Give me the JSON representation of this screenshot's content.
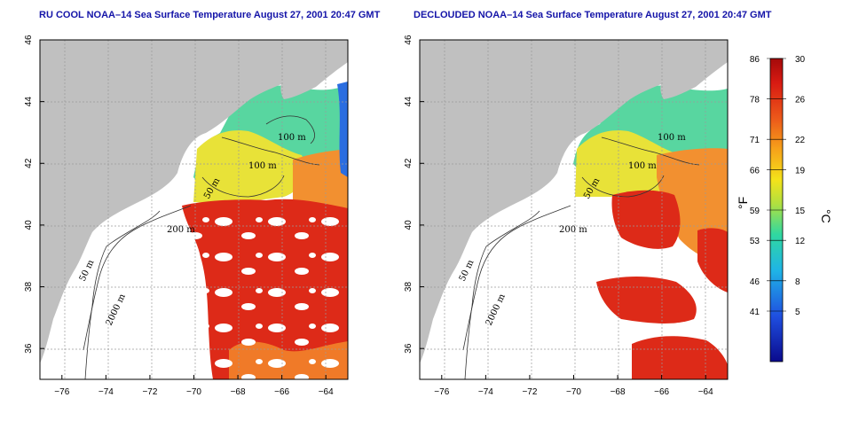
{
  "panels": [
    {
      "title": "RU COOL NOAA–14 Sea Surface Temperature August 27, 2001 20:47 GMT",
      "contour_labels": [
        "100 m",
        "100 m",
        "50 m",
        "200 m",
        "50 m",
        "2000 m"
      ]
    },
    {
      "title": "DECLOUDED NOAA–14 Sea Surface Temperature August 27, 2001 20:47 GMT",
      "contour_labels": [
        "100 m",
        "100 m",
        "50 m",
        "200 m",
        "50 m",
        "2000 m"
      ]
    }
  ],
  "axes": {
    "longitude_ticks": [
      "−76",
      "−74",
      "−72",
      "−70",
      "−68",
      "−66",
      "−64"
    ],
    "latitude_ticks": [
      "46",
      "44",
      "42",
      "40",
      "38",
      "36"
    ],
    "lon_range": [
      -77,
      -63
    ],
    "lat_range": [
      35,
      46
    ]
  },
  "colorbar": {
    "fahrenheit_ticks": [
      "86",
      "78",
      "71",
      "66",
      "59",
      "53",
      "46",
      "41"
    ],
    "celsius_ticks": [
      "30",
      "26",
      "22",
      "19",
      "15",
      "12",
      "8",
      "5"
    ],
    "fahrenheit_unit": "°F",
    "celsius_unit": "°C",
    "range_c": [
      0,
      30
    ]
  },
  "colors": {
    "land": "#c0c0c0",
    "water_nodata": "#ffffff",
    "title": "#1414a8",
    "grid": "#9a9a9a"
  }
}
